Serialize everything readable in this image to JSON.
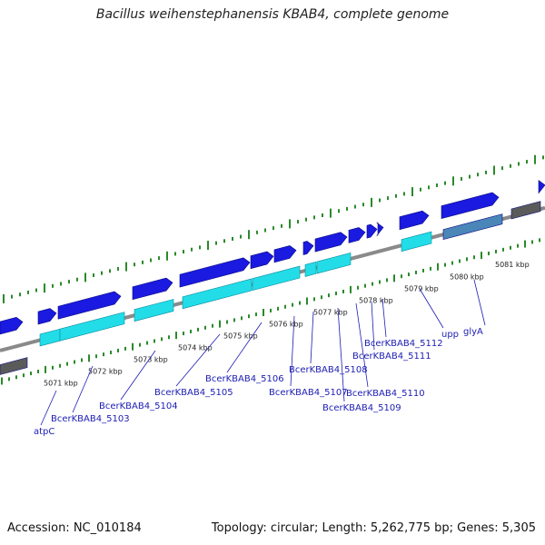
{
  "title": "Bacillus weihenstephanensis KBAB4, complete genome",
  "footer": {
    "accession": "Accession: NC_010184",
    "topology": "Topology: circular; Length: 5,262,775 bp; Genes: 5,305"
  },
  "colors": {
    "backbone": "#8a8a8a",
    "forward_gene": "#1a1ae0",
    "cds": "#22dde8",
    "rna_gene": "#4a86b8",
    "other": "#5a5a5a",
    "ticks": "#2a8a2a",
    "label": "#1c1cb4",
    "leader": "#1c1cb4"
  },
  "kbp_ticks": [
    {
      "label": "5071 kbp"
    },
    {
      "label": "5072 kbp"
    },
    {
      "label": "5073 kbp"
    },
    {
      "label": "5074 kbp"
    },
    {
      "label": "5075 kbp"
    },
    {
      "label": "5076 kbp"
    },
    {
      "label": "5077 kbp"
    },
    {
      "label": "5078 kbp"
    },
    {
      "label": "5079 kbp"
    },
    {
      "label": "5080 kbp"
    },
    {
      "label": "5081 kbp"
    }
  ],
  "genes": [
    {
      "label": "atpC"
    },
    {
      "label": "BcerKBAB4_5103"
    },
    {
      "label": "BcerKBAB4_5104"
    },
    {
      "label": "BcerKBAB4_5105"
    },
    {
      "label": "BcerKBAB4_5106"
    },
    {
      "label": "BcerKBAB4_5107"
    },
    {
      "label": "BcerKBAB4_5108"
    },
    {
      "label": "BcerKBAB4_5109"
    },
    {
      "label": "BcerKBAB4_5110"
    },
    {
      "label": "BcerKBAB4_5111"
    },
    {
      "label": "BcerKBAB4_5112"
    },
    {
      "label": "upp"
    },
    {
      "label": "glyA"
    }
  ]
}
